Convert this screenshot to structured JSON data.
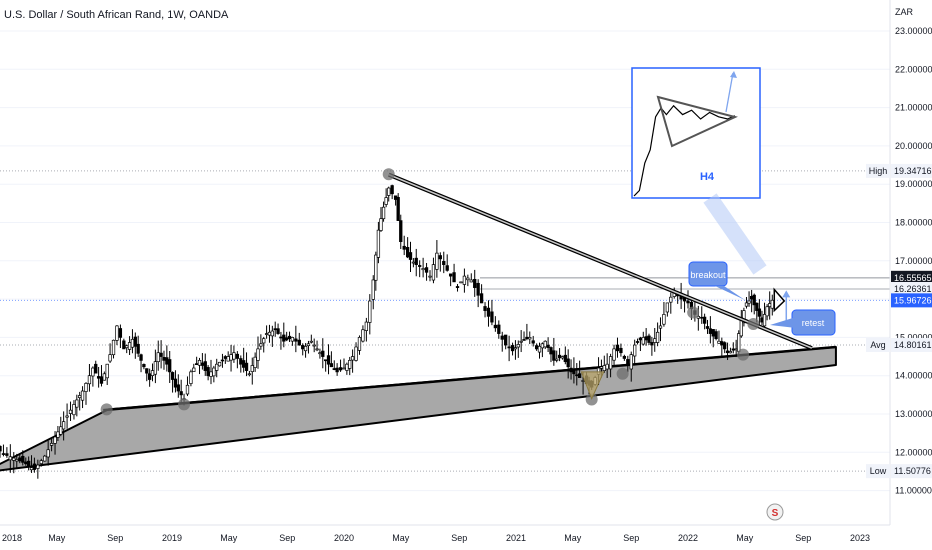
{
  "header": {
    "title": "U.S. Dollar / South African Rand, 1W, OANDA"
  },
  "chart_data": {
    "type": "candlestick",
    "symbol": "USDZAR",
    "interval": "1W",
    "currency_label": "ZAR",
    "ylim": [
      10.6,
      23.3
    ],
    "y_ticks": [
      "23.00000",
      "22.00000",
      "21.00000",
      "20.00000",
      "19.00000",
      "18.00000",
      "17.00000",
      "16.00000",
      "15.00000",
      "14.00000",
      "13.00000",
      "12.00000",
      "11.00000"
    ],
    "y_tick_values": [
      23,
      22,
      21,
      20,
      19,
      18,
      17,
      16,
      15,
      14,
      13,
      12,
      11
    ],
    "x_ticks": [
      "2018",
      "May",
      "Sep",
      "2019",
      "May",
      "Sep",
      "2020",
      "May",
      "Sep",
      "2021",
      "May",
      "Sep",
      "2022",
      "May",
      "Sep",
      "2023"
    ],
    "price_labels": [
      {
        "tag": "High",
        "text": "19.34716",
        "value": 19.34716,
        "kind": "hl"
      },
      {
        "tag": "Avg",
        "text": "14.80161",
        "value": 14.80161,
        "kind": "hl"
      },
      {
        "tag": "Low",
        "text": "11.50776",
        "value": 11.50776,
        "kind": "hl"
      },
      {
        "tag": "",
        "text": "16.55565",
        "value": 16.55565,
        "kind": "dark"
      },
      {
        "tag": "",
        "text": "16.26361",
        "value": 16.26361,
        "kind": "light"
      },
      {
        "tag": "",
        "text": "15.96726",
        "value": 15.96726,
        "kind": "blue"
      }
    ],
    "close_path": [
      [
        2017.9,
        12.35
      ],
      [
        2017.96,
        12.2
      ],
      [
        2018.02,
        11.95
      ],
      [
        2018.08,
        11.85
      ],
      [
        2018.15,
        11.7
      ],
      [
        2018.2,
        11.55
      ],
      [
        2018.26,
        11.9
      ],
      [
        2018.32,
        12.4
      ],
      [
        2018.37,
        12.8
      ],
      [
        2018.43,
        13.25
      ],
      [
        2018.48,
        13.6
      ],
      [
        2018.54,
        14.2
      ],
      [
        2018.59,
        13.8
      ],
      [
        2018.64,
        14.55
      ],
      [
        2018.68,
        15.3
      ],
      [
        2018.72,
        14.7
      ],
      [
        2018.77,
        14.95
      ],
      [
        2018.82,
        14.4
      ],
      [
        2018.87,
        13.9
      ],
      [
        2018.92,
        14.6
      ],
      [
        2018.97,
        14.3
      ],
      [
        2019.02,
        13.7
      ],
      [
        2019.07,
        13.4
      ],
      [
        2019.11,
        14.1
      ],
      [
        2019.16,
        14.4
      ],
      [
        2019.21,
        14.0
      ],
      [
        2019.26,
        14.3
      ],
      [
        2019.31,
        14.45
      ],
      [
        2019.36,
        14.6
      ],
      [
        2019.4,
        14.3
      ],
      [
        2019.45,
        14.05
      ],
      [
        2019.5,
        14.7
      ],
      [
        2019.55,
        15.1
      ],
      [
        2019.6,
        15.2
      ],
      [
        2019.65,
        14.9
      ],
      [
        2019.7,
        15.0
      ],
      [
        2019.76,
        14.7
      ],
      [
        2019.81,
        14.9
      ],
      [
        2019.86,
        14.6
      ],
      [
        2019.91,
        14.3
      ],
      [
        2019.96,
        14.1
      ],
      [
        2020.0,
        14.2
      ],
      [
        2020.05,
        14.5
      ],
      [
        2020.09,
        15.0
      ],
      [
        2020.13,
        15.4
      ],
      [
        2020.17,
        16.5
      ],
      [
        2020.2,
        17.8
      ],
      [
        2020.23,
        18.4
      ],
      [
        2020.26,
        18.9
      ],
      [
        2020.3,
        18.6
      ],
      [
        2020.33,
        17.5
      ],
      [
        2020.37,
        17.1
      ],
      [
        2020.42,
        16.9
      ],
      [
        2020.46,
        16.8
      ],
      [
        2020.5,
        16.6
      ],
      [
        2020.54,
        17.2
      ],
      [
        2020.58,
        16.9
      ],
      [
        2020.62,
        16.6
      ],
      [
        2020.66,
        16.3
      ],
      [
        2020.7,
        16.6
      ],
      [
        2020.74,
        16.5
      ],
      [
        2020.78,
        16.1
      ],
      [
        2020.82,
        15.7
      ],
      [
        2020.86,
        15.4
      ],
      [
        2020.9,
        15.1
      ],
      [
        2020.94,
        14.8
      ],
      [
        2020.98,
        14.65
      ],
      [
        2021.03,
        14.9
      ],
      [
        2021.08,
        15.0
      ],
      [
        2021.12,
        14.7
      ],
      [
        2021.17,
        14.9
      ],
      [
        2021.22,
        14.4
      ],
      [
        2021.27,
        14.5
      ],
      [
        2021.32,
        14.1
      ],
      [
        2021.37,
        13.95
      ],
      [
        2021.41,
        13.8
      ],
      [
        2021.44,
        13.7
      ],
      [
        2021.48,
        14.2
      ],
      [
        2021.53,
        14.3
      ],
      [
        2021.57,
        14.7
      ],
      [
        2021.61,
        14.6
      ],
      [
        2021.65,
        14.3
      ],
      [
        2021.69,
        14.8
      ],
      [
        2021.74,
        15.0
      ],
      [
        2021.79,
        14.8
      ],
      [
        2021.84,
        15.3
      ],
      [
        2021.88,
        15.9
      ],
      [
        2021.92,
        16.2
      ],
      [
        2021.96,
        16.0
      ],
      [
        2022.0,
        15.9
      ],
      [
        2022.04,
        15.6
      ],
      [
        2022.08,
        15.5
      ],
      [
        2022.13,
        15.1
      ],
      [
        2022.18,
        14.9
      ],
      [
        2022.23,
        14.6
      ],
      [
        2022.28,
        14.7
      ],
      [
        2022.31,
        15.5
      ],
      [
        2022.34,
        15.9
      ],
      [
        2022.37,
        16.0
      ],
      [
        2022.4,
        15.7
      ],
      [
        2022.43,
        15.4
      ],
      [
        2022.46,
        15.8
      ],
      [
        2022.49,
        15.97
      ]
    ],
    "drawings": {
      "upper_trendline": [
        [
          2020.26,
          19.25
        ],
        [
          2022.72,
          14.72
        ]
      ],
      "support_wedge": [
        [
          2017.9,
          11.47
        ],
        [
          2018.63,
          13.12
        ],
        [
          2022.86,
          14.75
        ],
        [
          2022.86,
          14.28
        ]
      ],
      "avg_line_start": 2018.6,
      "pivot_points": [
        [
          2017.96,
          11.43
        ],
        [
          2018.62,
          13.12
        ],
        [
          2019.07,
          13.25
        ],
        [
          2021.44,
          13.38
        ],
        [
          2021.62,
          14.05
        ],
        [
          2022.03,
          15.65
        ],
        [
          2022.32,
          14.55
        ],
        [
          2020.26,
          19.26
        ],
        [
          2022.38,
          15.35
        ]
      ],
      "bottom_triangle": [
        [
          2021.38,
          14.1
        ],
        [
          2021.51,
          14.1
        ],
        [
          2021.44,
          13.4
        ]
      ],
      "projection_arrow": [
        [
          2022.49,
          15.3
        ],
        [
          2022.49,
          16.15
        ]
      ],
      "target_line": 16.55565,
      "resistance_line": 16.26361
    },
    "annotations": [
      {
        "text": "breakout"
      },
      {
        "text": "retest"
      },
      {
        "text": "H4"
      }
    ],
    "inset": {
      "title": "H4",
      "close_path": [
        [
          0,
          0.0
        ],
        [
          0.03,
          0.05
        ],
        [
          0.06,
          0.3
        ],
        [
          0.09,
          0.42
        ],
        [
          0.12,
          0.72
        ],
        [
          0.15,
          0.8
        ],
        [
          0.18,
          0.74
        ],
        [
          0.22,
          0.82
        ],
        [
          0.27,
          0.74
        ],
        [
          0.32,
          0.78
        ],
        [
          0.37,
          0.7
        ],
        [
          0.42,
          0.76
        ],
        [
          0.47,
          0.72
        ],
        [
          0.52,
          0.7
        ],
        [
          0.56,
          0.73
        ]
      ]
    },
    "logo_initial": "S"
  }
}
